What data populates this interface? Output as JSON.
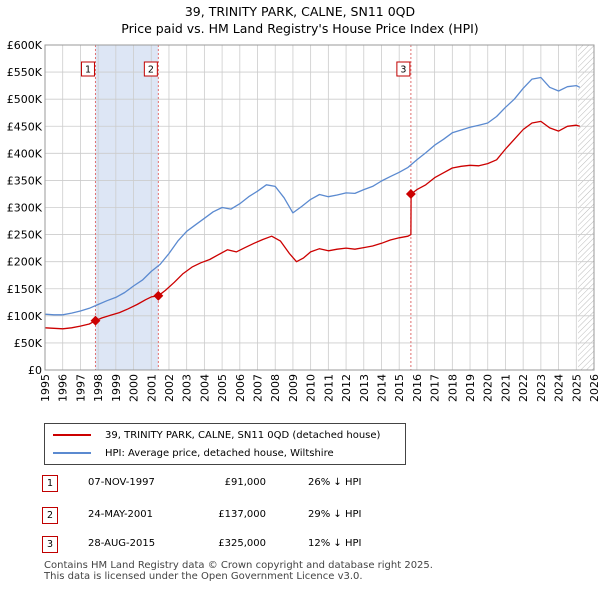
{
  "page": {
    "title_line1": "39, TRINITY PARK, CALNE, SN11 0QD",
    "title_line2": "Price paid vs. HM Land Registry's House Price Index (HPI)"
  },
  "legend": {
    "property_label": "39, TRINITY PARK, CALNE, SN11 0QD (detached house)",
    "hpi_label": "HPI: Average price, detached house, Wiltshire"
  },
  "transactions": [
    {
      "num": "1",
      "date": "07-NOV-1997",
      "price": "£91,000",
      "hpi": "26% ↓ HPI"
    },
    {
      "num": "2",
      "date": "24-MAY-2001",
      "price": "£137,000",
      "hpi": "29% ↓ HPI"
    },
    {
      "num": "3",
      "date": "28-AUG-2015",
      "price": "£325,000",
      "hpi": "12% ↓ HPI"
    }
  ],
  "footer": {
    "line1": "Contains HM Land Registry data © Crown copyright and database right 2025.",
    "line2": "This data is licensed under the Open Government Licence v3.0."
  },
  "colors": {
    "property_line": "#cc0000",
    "hpi_line": "#5b8ad0",
    "shade": "#dde6f5",
    "grid": "#cccccc",
    "marker_line": "#e07070"
  },
  "chart_data": {
    "type": "line",
    "title": "39, TRINITY PARK, CALNE, SN11 0QD",
    "subtitle": "Price paid vs. HM Land Registry's House Price Index (HPI)",
    "xlabel": "",
    "ylabel": "",
    "xlim": [
      1995.0,
      2026.0
    ],
    "ylim": [
      0,
      600000
    ],
    "grid": true,
    "legend_position": "below",
    "x_ticks": [
      1995,
      1996,
      1997,
      1998,
      1999,
      2000,
      2001,
      2002,
      2003,
      2004,
      2005,
      2006,
      2007,
      2008,
      2009,
      2010,
      2011,
      2012,
      2013,
      2014,
      2015,
      2016,
      2017,
      2018,
      2019,
      2020,
      2021,
      2022,
      2023,
      2024,
      2025,
      2026
    ],
    "y_ticks": [
      {
        "value": 0,
        "label": "£0"
      },
      {
        "value": 50000,
        "label": "£50K"
      },
      {
        "value": 100000,
        "label": "£100K"
      },
      {
        "value": 150000,
        "label": "£150K"
      },
      {
        "value": 200000,
        "label": "£200K"
      },
      {
        "value": 250000,
        "label": "£250K"
      },
      {
        "value": 300000,
        "label": "£300K"
      },
      {
        "value": 350000,
        "label": "£350K"
      },
      {
        "value": 400000,
        "label": "£400K"
      },
      {
        "value": 450000,
        "label": "£450K"
      },
      {
        "value": 500000,
        "label": "£500K"
      },
      {
        "value": 550000,
        "label": "£550K"
      },
      {
        "value": 600000,
        "label": "£600K"
      }
    ],
    "shaded_spans": [
      [
        1997.85,
        2001.4
      ]
    ],
    "future_hatch_from": 2025.1,
    "series": [
      {
        "name": "39, TRINITY PARK, CALNE, SN11 0QD (detached house)",
        "color": "#cc0000",
        "x": [
          1995.0,
          1995.5,
          1996.0,
          1996.5,
          1997.0,
          1997.5,
          1997.85,
          1998.2,
          1998.7,
          1999.2,
          1999.7,
          2000.2,
          2000.7,
          2001.0,
          2001.4,
          2001.8,
          2002.3,
          2002.8,
          2003.3,
          2003.8,
          2004.3,
          2004.8,
          2005.3,
          2005.8,
          2006.3,
          2006.8,
          2007.3,
          2007.8,
          2008.3,
          2008.8,
          2009.2,
          2009.6,
          2010.0,
          2010.5,
          2011.0,
          2011.5,
          2012.0,
          2012.5,
          2013.0,
          2013.5,
          2014.0,
          2014.5,
          2015.0,
          2015.5,
          2015.66,
          2015.67,
          2016.0,
          2016.5,
          2017.0,
          2017.5,
          2018.0,
          2018.5,
          2019.0,
          2019.5,
          2020.0,
          2020.5,
          2021.0,
          2021.5,
          2022.0,
          2022.5,
          2023.0,
          2023.5,
          2024.0,
          2024.5,
          2025.0,
          2025.2
        ],
        "y": [
          78000,
          77000,
          76000,
          78000,
          81000,
          85000,
          91000,
          96000,
          101000,
          106000,
          113000,
          121000,
          130000,
          135000,
          137000,
          147000,
          162000,
          178000,
          190000,
          198000,
          204000,
          213000,
          222000,
          218000,
          226000,
          234000,
          241000,
          247000,
          238000,
          215000,
          200000,
          207000,
          218000,
          224000,
          220000,
          223000,
          225000,
          223000,
          226000,
          229000,
          234000,
          240000,
          244000,
          247000,
          250000,
          325000,
          333000,
          342000,
          355000,
          364000,
          373000,
          376000,
          378000,
          377000,
          381000,
          388000,
          408000,
          426000,
          444000,
          456000,
          459000,
          447000,
          441000,
          450000,
          452000,
          450000
        ]
      },
      {
        "name": "HPI: Average price, detached house, Wiltshire",
        "color": "#5b8ad0",
        "x": [
          1995.0,
          1995.5,
          1996.0,
          1996.5,
          1997.0,
          1997.5,
          1998.0,
          1998.5,
          1999.0,
          1999.5,
          2000.0,
          2000.5,
          2001.0,
          2001.5,
          2002.0,
          2002.5,
          2003.0,
          2003.5,
          2004.0,
          2004.5,
          2005.0,
          2005.5,
          2006.0,
          2006.5,
          2007.0,
          2007.5,
          2008.0,
          2008.5,
          2009.0,
          2009.5,
          2010.0,
          2010.5,
          2011.0,
          2011.5,
          2012.0,
          2012.5,
          2013.0,
          2013.5,
          2014.0,
          2014.5,
          2015.0,
          2015.5,
          2016.0,
          2016.5,
          2017.0,
          2017.5,
          2018.0,
          2018.5,
          2019.0,
          2019.5,
          2020.0,
          2020.5,
          2021.0,
          2021.5,
          2022.0,
          2022.5,
          2023.0,
          2023.5,
          2024.0,
          2024.5,
          2025.0,
          2025.2
        ],
        "y": [
          103000,
          102000,
          102000,
          105000,
          109000,
          114000,
          121000,
          128000,
          134000,
          143000,
          155000,
          166000,
          182000,
          195000,
          215000,
          238000,
          256000,
          268000,
          280000,
          292000,
          300000,
          297000,
          307000,
          320000,
          330000,
          342000,
          339000,
          318000,
          290000,
          302000,
          315000,
          324000,
          320000,
          323000,
          327000,
          326000,
          333000,
          339000,
          349000,
          357000,
          365000,
          374000,
          388000,
          401000,
          415000,
          426000,
          438000,
          443000,
          448000,
          452000,
          456000,
          468000,
          485000,
          500000,
          520000,
          537000,
          540000,
          522000,
          515000,
          523000,
          525000,
          522000
        ]
      }
    ],
    "sale_markers": [
      {
        "label": "1",
        "x": 1997.85,
        "y": 91000
      },
      {
        "label": "2",
        "x": 2001.4,
        "y": 137000
      },
      {
        "label": "3",
        "x": 2015.66,
        "y": 325000
      }
    ]
  }
}
